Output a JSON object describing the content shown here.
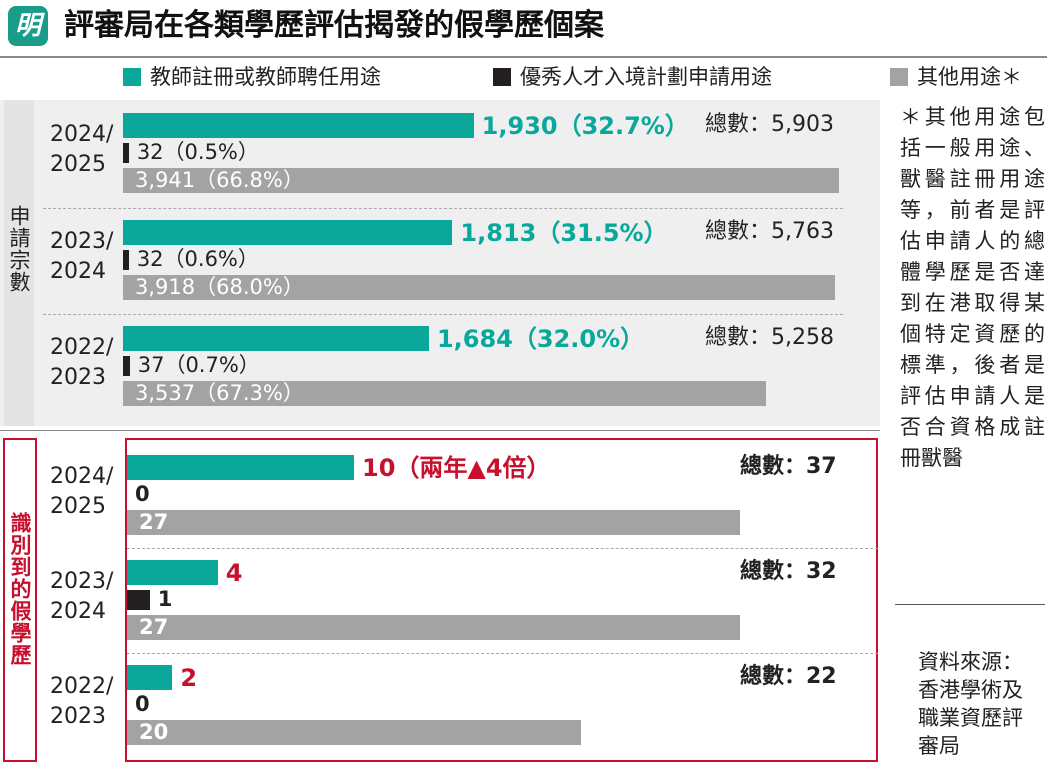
{
  "header": {
    "logo": "明",
    "title": "評審局在各類學歷評估揭發的假學歷個案"
  },
  "chart_data": [
    {
      "type": "bar",
      "orientation": "horizontal",
      "panel_label": "申請宗數",
      "categories": [
        "2024/\n2025",
        "2023/\n2024",
        "2022/\n2023"
      ],
      "series": [
        {
          "name": "教師註冊或教師聘任用途",
          "color": "#0aa89a",
          "values": [
            1930,
            1813,
            1684
          ],
          "value_labels": [
            "1,930（32.7%）",
            "1,813（31.5%）",
            "1,684（32.0%）"
          ]
        },
        {
          "name": "優秀人才入境計劃申請用途",
          "color": "#231f20",
          "values": [
            32,
            32,
            37
          ],
          "value_labels": [
            "32（0.5%）",
            "32（0.6%）",
            "37（0.7%）"
          ]
        },
        {
          "name": "其他用途＊",
          "color": "#a3a3a3",
          "values": [
            3941,
            3918,
            3537
          ],
          "value_labels": [
            "3,941（66.8%）",
            "3,918（68.0%）",
            "3,537（67.3%）"
          ]
        }
      ],
      "total_labels": [
        "總數：5,903",
        "總數：5,763",
        "總數：5,258"
      ]
    },
    {
      "type": "bar",
      "orientation": "horizontal",
      "panel_label": "識別到的假學歷",
      "categories": [
        "2024/\n2025",
        "2023/\n2024",
        "2022/\n2023"
      ],
      "series": [
        {
          "color": "#0aa89a",
          "values": [
            10,
            4,
            2
          ],
          "value_labels": [
            "10（兩年▲4倍）",
            "4",
            "2"
          ]
        },
        {
          "color": "#231f20",
          "values": [
            0,
            1,
            0
          ]
        },
        {
          "color": "#a3a3a3",
          "values": [
            27,
            27,
            20
          ]
        }
      ],
      "total_labels": [
        "總數：37",
        "總數：32",
        "總數：22"
      ]
    }
  ],
  "note": "＊其他用途包括一般用途、獸醫註冊用途等，前者是評估申請人的總體學歷是否達到在港取得某個特定資歷的標準，後者是評估申請人是否合資格成註冊獸醫",
  "source": "資料來源：香港學術及職業資歷評審局"
}
